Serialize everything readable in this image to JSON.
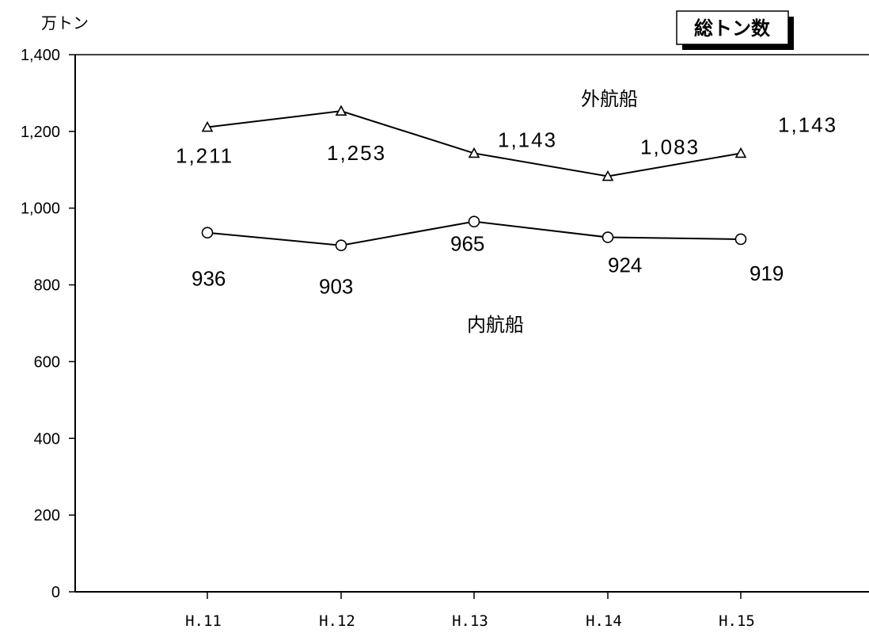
{
  "chart_data": {
    "type": "line",
    "title": "総トン数",
    "ylabel": "万トン",
    "xlabel": "",
    "categories": [
      "H.11",
      "H.12",
      "H.13",
      "H.14",
      "H.15"
    ],
    "ylim": [
      0,
      1400
    ],
    "yticks": [
      0,
      200,
      400,
      600,
      800,
      1000,
      1200,
      1400
    ],
    "ytick_labels": [
      "0",
      "200",
      "400",
      "600",
      "800",
      "1,000",
      "1,200",
      "1,400"
    ],
    "grid": false,
    "series": [
      {
        "name": "外航船",
        "marker": "triangle",
        "values": [
          1211,
          1253,
          1143,
          1083,
          1143
        ],
        "labels": [
          "1,211",
          "1,253",
          "1,143",
          "1,083",
          "1,143"
        ]
      },
      {
        "name": "内航船",
        "marker": "circle",
        "values": [
          936,
          903,
          965,
          924,
          919
        ],
        "labels": [
          "936",
          "903",
          "965",
          "924",
          "919"
        ]
      }
    ]
  }
}
